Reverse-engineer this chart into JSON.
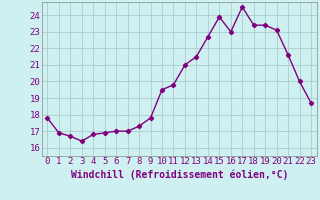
{
  "x": [
    0,
    1,
    2,
    3,
    4,
    5,
    6,
    7,
    8,
    9,
    10,
    11,
    12,
    13,
    14,
    15,
    16,
    17,
    18,
    19,
    20,
    21,
    22,
    23
  ],
  "y": [
    17.8,
    16.9,
    16.7,
    16.4,
    16.8,
    16.9,
    17.0,
    17.0,
    17.3,
    17.8,
    19.5,
    19.8,
    21.0,
    21.5,
    22.7,
    23.9,
    23.0,
    24.5,
    23.4,
    23.4,
    23.1,
    21.6,
    20.0,
    18.7
  ],
  "line_color": "#800080",
  "marker": "D",
  "marker_size": 2.2,
  "bg_color": "#cff0f0",
  "grid_color": "#aacccc",
  "xlabel": "Windchill (Refroidissement éolien,°C)",
  "xlabel_color": "#800080",
  "tick_color": "#800080",
  "ylim": [
    15.5,
    24.8
  ],
  "xlim": [
    -0.5,
    23.5
  ],
  "yticks": [
    16,
    17,
    18,
    19,
    20,
    21,
    22,
    23,
    24
  ],
  "xticks": [
    0,
    1,
    2,
    3,
    4,
    5,
    6,
    7,
    8,
    9,
    10,
    11,
    12,
    13,
    14,
    15,
    16,
    17,
    18,
    19,
    20,
    21,
    22,
    23
  ],
  "tick_fontsize": 6.5,
  "xlabel_fontsize": 7.0,
  "linewidth": 1.0
}
